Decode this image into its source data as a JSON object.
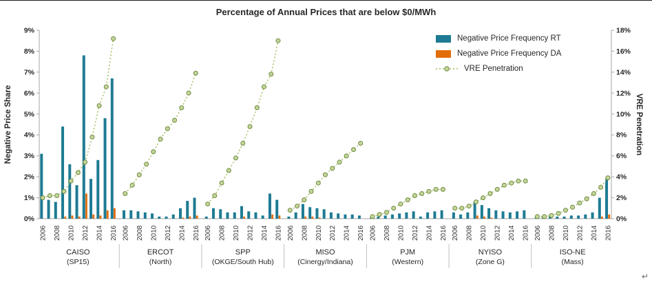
{
  "title": "Percentage of Annual Prices that are below $0/MWh",
  "left_axis": {
    "label": "Negative Price Share",
    "ticks": [
      "0%",
      "1%",
      "2%",
      "3%",
      "4%",
      "5%",
      "6%",
      "7%",
      "8%",
      "9%"
    ],
    "min": 0,
    "max": 9
  },
  "right_axis": {
    "label": "VRE Penetration",
    "ticks": [
      "0%",
      "2%",
      "4%",
      "6%",
      "8%",
      "10%",
      "12%",
      "14%",
      "16%",
      "18%"
    ],
    "min": 0,
    "max": 18
  },
  "legend": [
    {
      "label": "Negative Price Frequency RT",
      "color": "#1e7b93",
      "type": "bar"
    },
    {
      "label": "Negative Price Frequency DA",
      "color": "#e36c0a",
      "type": "bar"
    },
    {
      "label": "VRE Penetration",
      "color": "#9bbb59",
      "marker_fill": "#c3d69b",
      "marker_stroke": "#71893f",
      "type": "dotted-line"
    }
  ],
  "chart_data": {
    "type": "bar",
    "x_years": [
      2006,
      2007,
      2008,
      2009,
      2010,
      2011,
      2012,
      2013,
      2014,
      2015,
      2016
    ],
    "year_tick_labels": [
      "2006",
      "2008",
      "2010",
      "2012",
      "2014",
      "2016"
    ],
    "left_ylim": [
      0,
      9
    ],
    "right_ylim": [
      0,
      18
    ],
    "units": "percent",
    "series_notes": "rt and da read on left axis (Negative Price Share), vre reads on right axis (VRE Penetration)",
    "groups": [
      {
        "name": "CAISO",
        "sub": "(SP15)",
        "rt": [
          3.1,
          0.9,
          0.8,
          4.4,
          2.6,
          1.6,
          7.8,
          1.9,
          2.8,
          4.8,
          6.7
        ],
        "da": [
          0,
          0,
          0,
          0.1,
          0.15,
          0.1,
          1.2,
          0.2,
          0.15,
          0.4,
          0.5
        ],
        "vre": [
          2.0,
          2.2,
          2.2,
          2.6,
          3.6,
          4.4,
          5.4,
          7.8,
          10.8,
          12.6,
          17.2
        ]
      },
      {
        "name": "ERCOT",
        "sub": "(North)",
        "rt": [
          0.4,
          0.4,
          0.35,
          0.3,
          0.25,
          0.1,
          0.1,
          0.2,
          0.5,
          0.85,
          1.0
        ],
        "da": [
          0,
          0,
          0,
          0,
          0,
          0,
          0,
          0,
          0.05,
          0.1,
          0.15
        ],
        "vre": [
          2.4,
          3.2,
          4.2,
          5.2,
          6.4,
          7.6,
          8.6,
          9.4,
          10.6,
          12.0,
          13.9
        ]
      },
      {
        "name": "SPP",
        "sub": "(OKGE/South Hub)",
        "rt": [
          0.1,
          0.5,
          0.45,
          0.3,
          0.3,
          0.6,
          0.35,
          0.3,
          0.15,
          1.2,
          0.9
        ],
        "da": [
          0,
          0,
          0,
          0,
          0,
          0.1,
          0,
          0,
          0,
          0.2,
          0.15
        ],
        "vre": [
          1.4,
          2.2,
          3.4,
          4.6,
          5.8,
          7.2,
          8.8,
          10.6,
          12.6,
          13.8,
          17.0
        ]
      },
      {
        "name": "MISO",
        "sub": "(Cinergy/Indiana)",
        "rt": [
          0.1,
          0.3,
          0.7,
          0.55,
          0.5,
          0.45,
          0.3,
          0.25,
          0.2,
          0.2,
          0.15
        ],
        "da": [
          0,
          0,
          0.1,
          0.1,
          0.05,
          0,
          0,
          0,
          0,
          0,
          0
        ],
        "vre": [
          0.8,
          1.2,
          1.8,
          2.6,
          3.4,
          4.2,
          4.8,
          5.4,
          6.0,
          6.6,
          7.2
        ]
      },
      {
        "name": "PJM",
        "sub": "(Western)",
        "rt": [
          0.05,
          0.1,
          0.15,
          0.2,
          0.25,
          0.3,
          0.35,
          0.1,
          0.3,
          0.35,
          0.4
        ],
        "da": [
          0,
          0,
          0,
          0,
          0,
          0,
          0,
          0,
          0,
          0,
          0
        ],
        "vre": [
          0.2,
          0.4,
          0.6,
          1.0,
          1.4,
          1.8,
          2.2,
          2.4,
          2.6,
          2.8,
          2.8
        ]
      },
      {
        "name": "NYISO",
        "sub": "(Zone G)",
        "rt": [
          0.3,
          0.2,
          0.3,
          0.8,
          0.65,
          0.5,
          0.4,
          0.35,
          0.3,
          0.35,
          0.4
        ],
        "da": [
          0,
          0,
          0,
          0.15,
          0.1,
          0.05,
          0,
          0,
          0,
          0,
          0
        ],
        "vre": [
          1.0,
          1.0,
          1.2,
          1.6,
          2.0,
          2.4,
          2.8,
          3.2,
          3.4,
          3.6,
          3.6
        ]
      },
      {
        "name": "ISO-NE",
        "sub": "(Mass)",
        "rt": [
          0.05,
          0.05,
          0.1,
          0.1,
          0.1,
          0.15,
          0.15,
          0.2,
          0.3,
          1.0,
          1.9
        ],
        "da": [
          0,
          0,
          0,
          0,
          0,
          0,
          0,
          0,
          0,
          0.1,
          0.2
        ],
        "vre": [
          0.2,
          0.2,
          0.3,
          0.5,
          0.8,
          1.1,
          1.5,
          1.9,
          2.4,
          3.0,
          3.9
        ]
      }
    ]
  },
  "misc": {
    "return_mark": "↵"
  }
}
